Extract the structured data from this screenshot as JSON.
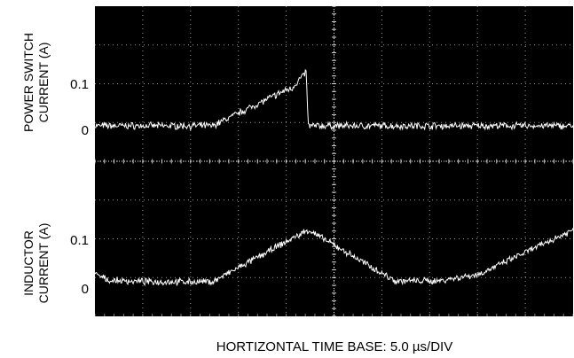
{
  "chart_data": [
    {
      "type": "line",
      "title": "",
      "xlabel": "HORTIZONTAL TIME BASE: 5.0 µs/DIV",
      "ylabel": [
        "POWER SWITCH",
        "CURRENT (A)"
      ],
      "yticks": [
        {
          "label": "0.1",
          "value": 0.1
        },
        {
          "label": "0",
          "value": 0
        }
      ],
      "ylim": [
        -0.06,
        0.2
      ],
      "xlim": [
        0,
        50
      ],
      "x_unit": "µs",
      "grid": true,
      "background": "#000000",
      "trace_color": "#ffffff",
      "series": [
        {
          "x": [
            0,
            12.3,
            20.2,
            20.5,
            22.1,
            22.3,
            50.0
          ],
          "y": [
            0,
            0.0,
            0.083,
            0.083,
            0.122,
            0.0,
            0.0
          ],
          "period_us": 37.9
        }
      ]
    },
    {
      "type": "line",
      "title": "",
      "xlabel": "HORTIZONTAL TIME BASE: 5.0 µs/DIV",
      "ylabel": [
        "INDUCTOR",
        "CURRENT (A)"
      ],
      "yticks": [
        {
          "label": "0.1",
          "value": 0.1
        },
        {
          "label": "0",
          "value": 0
        }
      ],
      "ylim": [
        -0.06,
        0.2
      ],
      "xlim": [
        0,
        50
      ],
      "x_unit": "µs",
      "grid": true,
      "background": "#000000",
      "trace_color": "#ffffff",
      "series": [
        {
          "x": [
            0,
            1.5,
            6.0,
            12.3,
            22.3,
            31.4,
            35.8,
            40.2,
            50.0
          ],
          "y": [
            0.018,
            0.003,
            0.0,
            0.0,
            0.122,
            0.002,
            0.002,
            0.018,
            0.122
          ],
          "period_us": 37.9
        }
      ]
    }
  ]
}
